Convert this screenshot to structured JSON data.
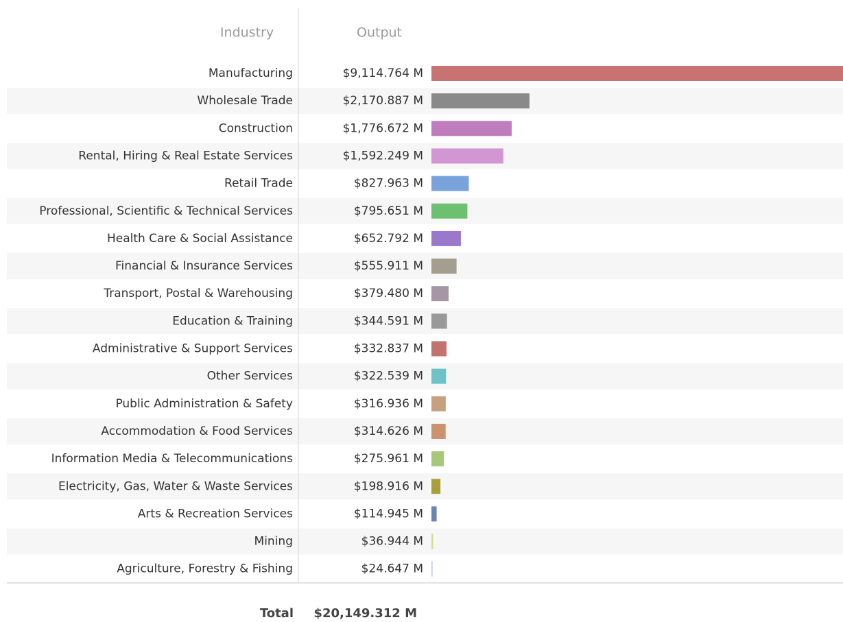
{
  "chart_data": {
    "type": "bar",
    "orientation": "horizontal",
    "category_header": "Industry",
    "value_header": "Output",
    "categories": [
      "Manufacturing",
      "Wholesale Trade",
      "Construction",
      "Rental, Hiring & Real Estate Services",
      "Retail Trade",
      "Professional, Scientific & Technical Services",
      "Health Care & Social Assistance",
      "Financial & Insurance Services",
      "Transport, Postal & Warehousing",
      "Education & Training",
      "Administrative & Support Services",
      "Other Services",
      "Public Administration & Safety",
      "Accommodation & Food Services",
      "Information Media & Telecommunications",
      "Electricity, Gas, Water & Waste Services",
      "Arts & Recreation Services",
      "Mining",
      "Agriculture, Forestry & Fishing"
    ],
    "values": [
      9114.764,
      2170.887,
      1776.672,
      1592.249,
      827.963,
      795.651,
      652.792,
      555.911,
      379.48,
      344.591,
      332.837,
      322.539,
      316.936,
      314.626,
      275.961,
      198.916,
      114.945,
      36.944,
      24.647
    ],
    "value_labels": [
      "$9,114.764 M",
      "$2,170.887 M",
      "$1,776.672 M",
      "$1,592.249 M",
      "$827.963 M",
      "$795.651 M",
      "$652.792 M",
      "$555.911 M",
      "$379.480 M",
      "$344.591 M",
      "$332.837 M",
      "$322.539 M",
      "$316.936 M",
      "$314.626 M",
      "$275.961 M",
      "$198.916 M",
      "$114.945 M",
      "$36.944 M",
      "$24.647 M"
    ],
    "colors": [
      "#c87272",
      "#8a8a8a",
      "#c07dbe",
      "#d296d2",
      "#7aa3dc",
      "#6cc070",
      "#9a79cc",
      "#a49e8e",
      "#a597a5",
      "#999999",
      "#c3736e",
      "#6fc3c8",
      "#c9a07e",
      "#cc9270",
      "#a7c77a",
      "#a9a03c",
      "#6c84b4",
      "#dada8a",
      "#b8c8e0"
    ],
    "total_label": "Total",
    "total": 20149.312,
    "total_value_label": "$20,149.312 M"
  }
}
